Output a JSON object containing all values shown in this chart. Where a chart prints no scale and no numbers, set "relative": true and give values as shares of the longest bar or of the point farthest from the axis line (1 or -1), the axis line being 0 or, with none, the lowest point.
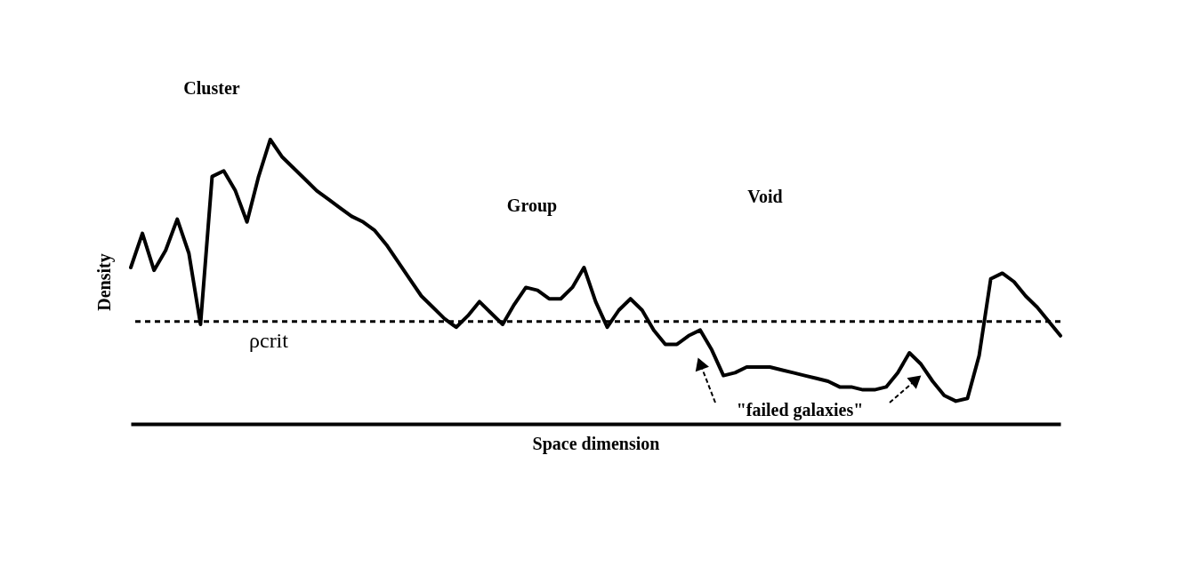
{
  "chart_data": {
    "type": "line",
    "relative": true,
    "xlabel": "Space dimension",
    "ylabel": "Density",
    "categories": [
      null,
      null,
      null,
      null,
      null,
      null,
      null,
      null,
      null,
      null,
      null,
      null,
      null,
      null,
      null,
      null,
      null,
      null,
      null,
      null,
      null,
      null,
      null,
      null,
      null,
      null,
      null,
      null,
      null,
      null,
      null,
      null,
      null,
      null,
      null,
      null,
      null,
      null,
      null,
      null,
      null,
      null,
      null,
      null,
      null,
      null,
      null,
      null,
      null,
      null,
      null,
      null,
      null,
      null,
      null,
      null,
      null,
      null,
      null,
      null,
      null,
      null,
      null,
      null,
      null,
      null,
      null,
      null,
      null,
      null,
      null,
      null,
      null,
      null,
      null,
      null,
      null,
      null,
      null,
      null,
      null
    ],
    "series": [
      {
        "color": "#000000",
        "values": [
          0.55,
          0.67,
          0.54,
          0.61,
          0.72,
          0.6,
          0.35,
          0.87,
          0.89,
          0.82,
          0.71,
          0.87,
          1,
          0.94,
          0.9,
          0.86,
          0.82,
          0.79,
          0.76,
          0.73,
          0.71,
          0.68,
          0.63,
          0.57,
          0.51,
          0.45,
          0.41,
          0.37,
          0.34,
          0.38,
          0.43,
          0.39,
          0.35,
          0.42,
          0.48,
          0.47,
          0.44,
          0.44,
          0.48,
          0.55,
          0.43,
          0.34,
          0.4,
          0.44,
          0.4,
          0.33,
          0.28,
          0.28,
          0.31,
          0.33,
          0.26,
          0.17,
          0.18,
          0.2,
          0.2,
          0.2,
          0.19,
          0.18,
          0.17,
          0.16,
          0.15,
          0.13,
          0.13,
          0.12,
          0.12,
          0.13,
          0.18,
          0.25,
          0.21,
          0.15,
          0.1,
          0.08,
          0.09,
          0.24,
          0.51,
          0.53,
          0.5,
          0.45,
          0.41,
          0.36,
          0.31
        ]
      }
    ],
    "line_style": "solid",
    "grid": false,
    "ref_lines": [
      {
        "axis": "y",
        "value": 0.36,
        "label": "ρcrit",
        "color": "#000000",
        "line_style": "dashed"
      }
    ],
    "annotations": [
      "Cluster",
      "Group",
      "Void",
      "\"failed galaxies\""
    ]
  }
}
